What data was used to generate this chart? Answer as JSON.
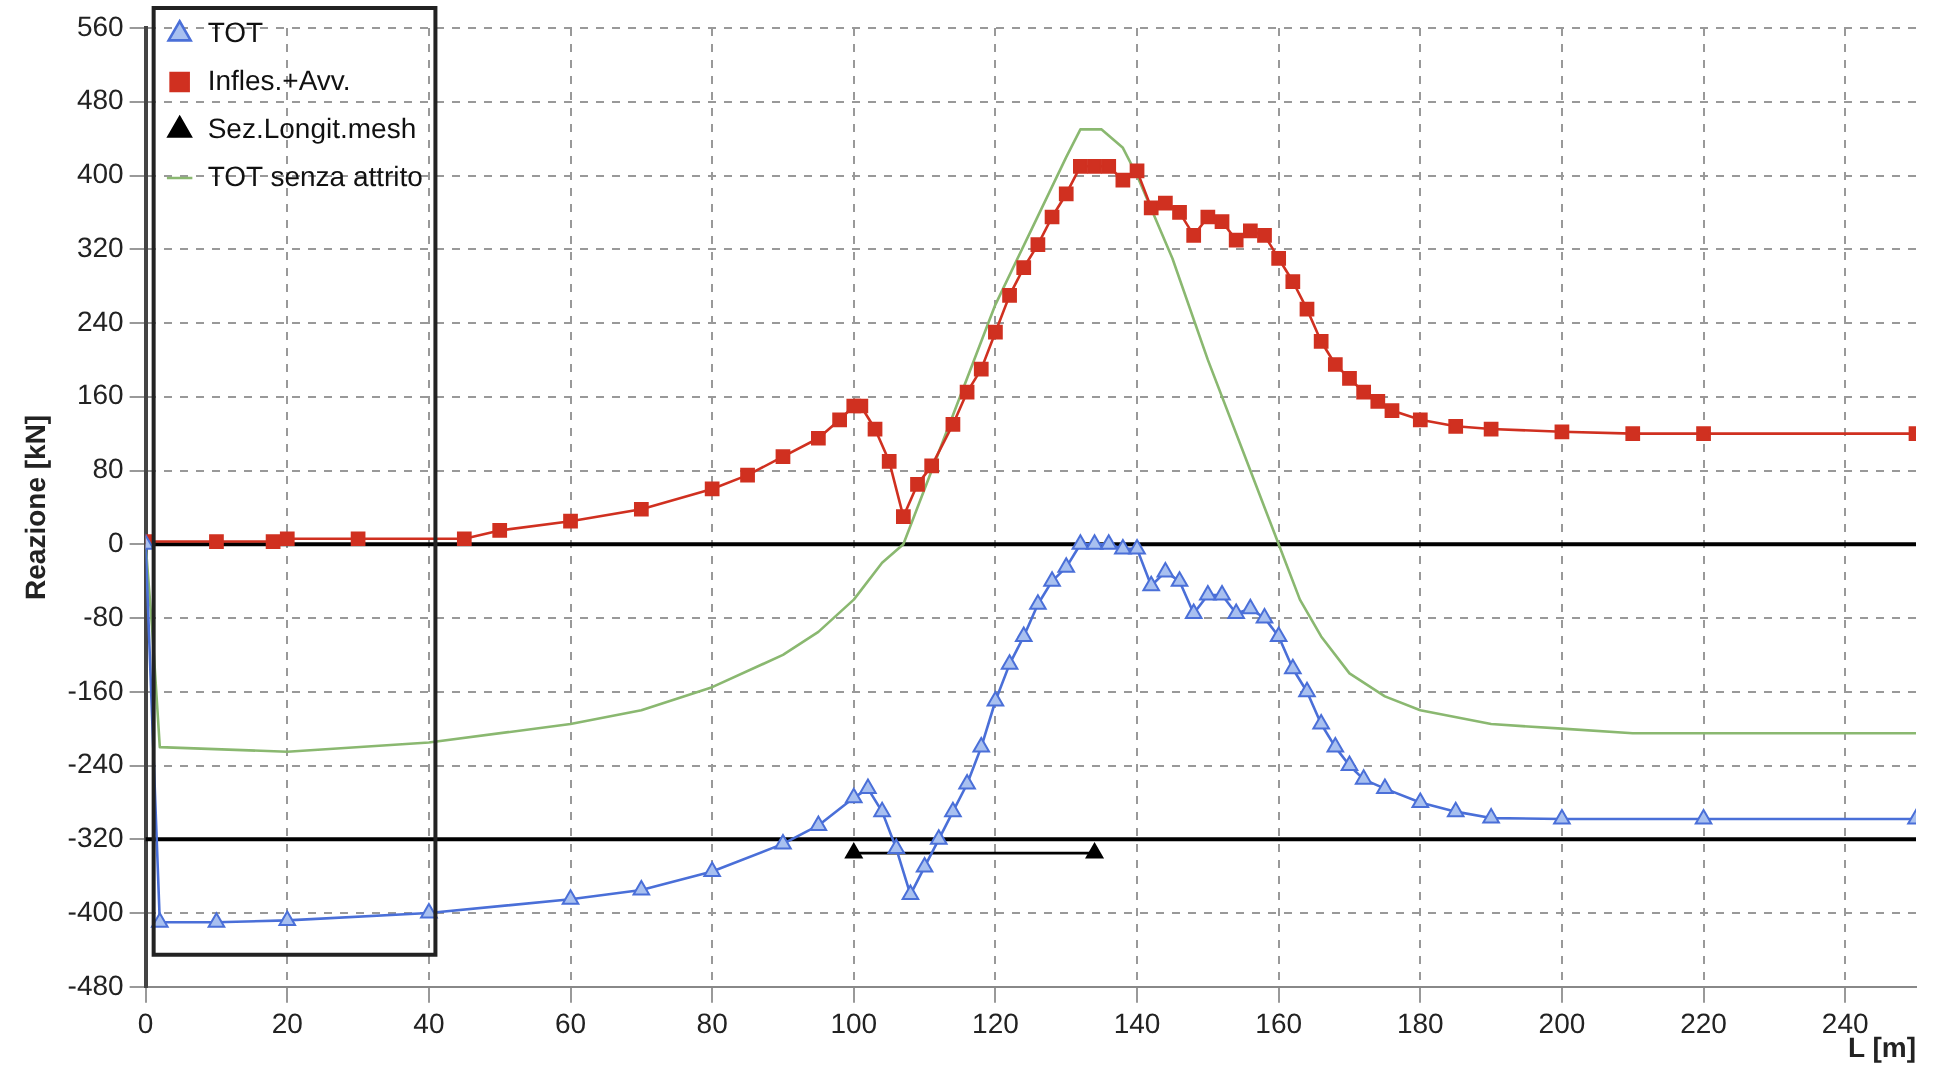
{
  "chart_data": {
    "type": "line",
    "ylabel": "Reazione [kN]",
    "xlabel": "L [m]",
    "xlim": [
      0,
      250
    ],
    "xticks": [
      0,
      20,
      40,
      60,
      80,
      100,
      120,
      140,
      160,
      180,
      200,
      220,
      240
    ],
    "ylim": [
      -480,
      560
    ],
    "yticks": [
      -480,
      -400,
      -320,
      -240,
      -160,
      -80,
      0,
      80,
      160,
      240,
      320,
      400,
      480,
      560
    ],
    "grid": true,
    "legend": "top left",
    "ref_lines": [
      {
        "axis": "y",
        "value": 0,
        "color": "#000000"
      },
      {
        "axis": "y",
        "value": -320,
        "color": "#000000"
      }
    ],
    "series": [
      {
        "name": "TOT",
        "color": "#4a6fd8",
        "marker": "triangle",
        "x": [
          0,
          2,
          10,
          20,
          40,
          60,
          70,
          80,
          90,
          95,
          100,
          102,
          104,
          106,
          108,
          110,
          112,
          114,
          116,
          118,
          120,
          122,
          124,
          126,
          128,
          130,
          132,
          134,
          136,
          138,
          140,
          142,
          144,
          146,
          148,
          150,
          152,
          154,
          156,
          158,
          160,
          162,
          164,
          166,
          168,
          170,
          172,
          175,
          180,
          185,
          190,
          200,
          220,
          250
        ],
        "values": [
          0,
          -410,
          -410,
          -408,
          -400,
          -385,
          -375,
          -355,
          -325,
          -305,
          -275,
          -265,
          -290,
          -330,
          -380,
          -350,
          -320,
          -290,
          -260,
          -220,
          -170,
          -130,
          -100,
          -65,
          -40,
          -25,
          0,
          0,
          0,
          -5,
          -5,
          -45,
          -30,
          -40,
          -75,
          -55,
          -55,
          -75,
          -70,
          -80,
          -100,
          -135,
          -160,
          -195,
          -220,
          -240,
          -255,
          -265,
          -280,
          -290,
          -297,
          -298,
          -298,
          -298
        ]
      },
      {
        "name": "Infles.+Avv.",
        "color": "#d03020",
        "marker": "square",
        "x": [
          0,
          10,
          18,
          20,
          30,
          45,
          50,
          60,
          70,
          80,
          85,
          90,
          95,
          98,
          100,
          101,
          103,
          105,
          107,
          109,
          111,
          114,
          116,
          118,
          120,
          122,
          124,
          126,
          128,
          130,
          132,
          134,
          136,
          138,
          140,
          142,
          144,
          146,
          148,
          150,
          152,
          154,
          156,
          158,
          160,
          162,
          164,
          166,
          168,
          170,
          172,
          174,
          176,
          180,
          185,
          190,
          200,
          210,
          220,
          250
        ],
        "values": [
          3,
          3,
          3,
          6,
          6,
          6,
          15,
          25,
          38,
          60,
          75,
          95,
          115,
          135,
          150,
          150,
          125,
          90,
          30,
          65,
          85,
          130,
          165,
          190,
          230,
          270,
          300,
          325,
          355,
          380,
          410,
          410,
          410,
          395,
          405,
          365,
          370,
          360,
          335,
          355,
          350,
          330,
          340,
          335,
          310,
          285,
          255,
          220,
          195,
          180,
          165,
          155,
          145,
          135,
          128,
          125,
          122,
          120,
          120,
          120
        ]
      },
      {
        "name": "Sez.Longit.mesh",
        "color": "#000000",
        "marker": "triangle",
        "x": [
          100,
          134
        ],
        "values": [
          -335,
          -335
        ]
      },
      {
        "name": "TOT senza attrito",
        "color": "#8ab870",
        "marker": "none",
        "x": [
          0,
          1,
          2,
          20,
          40,
          60,
          70,
          80,
          90,
          95,
          100,
          104,
          107,
          110,
          115,
          120,
          125,
          130,
          132,
          135,
          138,
          140,
          145,
          150,
          155,
          160,
          163,
          166,
          170,
          175,
          180,
          190,
          200,
          210,
          250
        ],
        "values": [
          0,
          -100,
          -220,
          -225,
          -215,
          -195,
          -180,
          -155,
          -120,
          -95,
          -60,
          -20,
          0,
          60,
          160,
          260,
          340,
          420,
          450,
          450,
          430,
          400,
          310,
          200,
          100,
          0,
          -60,
          -100,
          -140,
          -165,
          -180,
          -195,
          -200,
          -205,
          -205
        ]
      }
    ]
  }
}
